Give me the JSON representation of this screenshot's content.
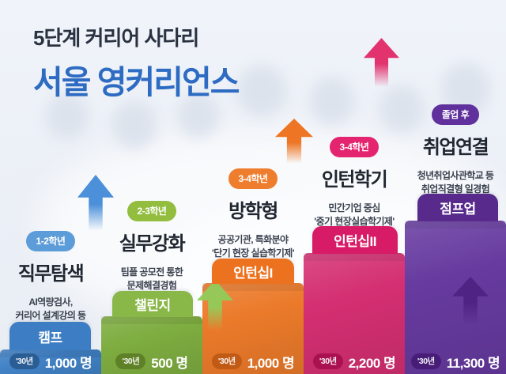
{
  "title": {
    "line1": "5단계 커리어 사다리",
    "line2": "서울 영커리언스",
    "line1_color": "#2a3140",
    "line2_color": "#2d6cc2"
  },
  "columns": [
    {
      "badge": "1-2학년",
      "name": "직무탐색",
      "desc1": "AI역량검사,",
      "desc2": "커리어 설계강의 등",
      "program": "캠프",
      "year": "'30년",
      "count": "1,000 명",
      "colors": {
        "badge": "#5c9cd8",
        "tab": "#3d7dc3",
        "bar": "#4182c6",
        "pill": "#2b5d95"
      }
    },
    {
      "badge": "2-3학년",
      "name": "실무강화",
      "desc1": "팀플 공모전 통한",
      "desc2": "문제해결경험",
      "program": "챌린지",
      "year": "'30년",
      "count": "500 명",
      "colors": {
        "badge": "#92bd3f",
        "tab": "#89b748",
        "bar": "#7ead40",
        "pill": "#5e8027"
      }
    },
    {
      "badge": "3-4학년",
      "name": "방학형",
      "desc1": "공공기관, 특화분야",
      "desc2": "'단기 현장 실습학기제'",
      "program": "인턴십I",
      "year": "'30년",
      "count": "1,000 명",
      "colors": {
        "badge": "#ef7d2e",
        "tab": "#ec7220",
        "bar": "#eb7a2a",
        "pill": "#c05a15"
      }
    },
    {
      "badge": "3-4학년",
      "name": "인턴학기",
      "desc1": "민간기업 중심",
      "desc2": "'중기 현장실습학기제'",
      "program": "인턴십II",
      "year": "'30년",
      "count": "2,200 명",
      "colors": {
        "badge": "#e4246e",
        "tab": "#d81b66",
        "bar": "#d42f72",
        "pill": "#aa1150"
      }
    },
    {
      "badge": "졸업 후",
      "name": "취업연결",
      "desc1": "청년취업사관학교 등",
      "desc2": "취업직결형 일경험",
      "program": "점프업",
      "year": "'30년",
      "count": "11,300 명",
      "colors": {
        "badge": "#60309c",
        "tab": "#572a8c",
        "bar": "#663a9f",
        "pill": "#471d77"
      }
    }
  ],
  "arrows": [
    {
      "name": "blue-up-arrow",
      "color": "#4b90d9"
    },
    {
      "name": "orange-up-arrow",
      "color": "#ee7524"
    },
    {
      "name": "pink-up-arrow",
      "color": "#e2336f"
    },
    {
      "name": "green-inner-arrow",
      "color": "#92cc5a"
    },
    {
      "name": "purple-inner-arrow",
      "color": "#4c2182"
    }
  ]
}
